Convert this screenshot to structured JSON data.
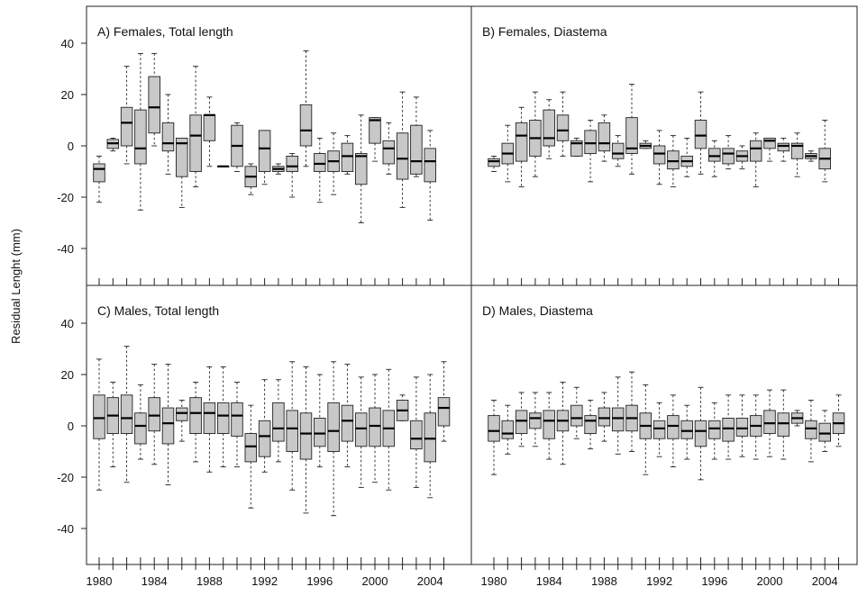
{
  "y_axis_title": "Residual Lenght (mm)",
  "chart_data": [
    {
      "type": "box",
      "title": "A) Females, Total length",
      "ylim": [
        -52,
        52
      ],
      "y_ticks": [
        40,
        20,
        0,
        -20,
        -40
      ],
      "x_ticks": [
        1980,
        1984,
        1988,
        1992,
        1996,
        2000,
        2004
      ],
      "years": [
        1980,
        1981,
        1982,
        1983,
        1984,
        1985,
        1986,
        1987,
        1988,
        1989,
        1990,
        1991,
        1992,
        1993,
        1994,
        1995,
        1996,
        1997,
        1998,
        1999,
        2000,
        2001,
        2002,
        2003,
        2004,
        2005
      ],
      "boxes": [
        {
          "year": 1980,
          "min": -22,
          "q1": -14,
          "median": -9,
          "q3": -7,
          "max": -4
        },
        {
          "year": 1981,
          "min": -2,
          "q1": -1,
          "median": 1,
          "q3": 2.5,
          "max": 3
        },
        {
          "year": 1982,
          "min": -7,
          "q1": 0,
          "median": 9,
          "q3": 15,
          "max": 31
        },
        {
          "year": 1983,
          "min": -25,
          "q1": -7,
          "median": -1,
          "q3": 14,
          "max": 36
        },
        {
          "year": 1984,
          "min": 0,
          "q1": 5,
          "median": 15,
          "q3": 27,
          "max": 36
        },
        {
          "year": 1985,
          "min": -11,
          "q1": -2,
          "median": 1,
          "q3": 9,
          "max": 20
        },
        {
          "year": 1986,
          "min": -24,
          "q1": -12,
          "median": 1,
          "q3": 3,
          "max": 3
        },
        {
          "year": 1987,
          "min": -16,
          "q1": -10,
          "median": 4,
          "q3": 12,
          "max": 31
        },
        {
          "year": 1988,
          "min": -8,
          "q1": 2,
          "median": 12,
          "q3": 12,
          "max": 19
        },
        {
          "year": 1989,
          "min": -8,
          "q1": -8,
          "median": -8,
          "q3": -8,
          "max": -8
        },
        {
          "year": 1990,
          "min": -10,
          "q1": -8,
          "median": 0,
          "q3": 8,
          "max": 9
        },
        {
          "year": 1991,
          "min": -19,
          "q1": -16,
          "median": -12,
          "q3": -8,
          "max": -7
        },
        {
          "year": 1992,
          "min": -15,
          "q1": -10,
          "median": -1,
          "q3": 6,
          "max": 6
        },
        {
          "year": 1993,
          "min": -11,
          "q1": -10,
          "median": -9,
          "q3": -8,
          "max": -7
        },
        {
          "year": 1994,
          "min": -20,
          "q1": -10,
          "median": -8,
          "q3": -4,
          "max": -3
        },
        {
          "year": 1995,
          "min": -8,
          "q1": 0,
          "median": 6,
          "q3": 16,
          "max": 37
        },
        {
          "year": 1996,
          "min": -22,
          "q1": -10,
          "median": -7,
          "q3": -3,
          "max": 3
        },
        {
          "year": 1997,
          "min": -19,
          "q1": -10,
          "median": -6,
          "q3": -2,
          "max": 5
        },
        {
          "year": 1998,
          "min": -11,
          "q1": -10,
          "median": -4,
          "q3": 1,
          "max": 4
        },
        {
          "year": 1999,
          "min": -30,
          "q1": -15,
          "median": -4,
          "q3": -3,
          "max": 12
        },
        {
          "year": 2000,
          "min": -6,
          "q1": 1,
          "median": 10,
          "q3": 11,
          "max": 11
        },
        {
          "year": 2001,
          "min": -11,
          "q1": -7,
          "median": -1,
          "q3": 2,
          "max": 9
        },
        {
          "year": 2002,
          "min": -24,
          "q1": -13,
          "median": -5,
          "q3": 5,
          "max": 21
        },
        {
          "year": 2003,
          "min": -12,
          "q1": -11,
          "median": -6,
          "q3": 8,
          "max": 19
        },
        {
          "year": 2004,
          "min": -29,
          "q1": -14,
          "median": -6,
          "q3": -1,
          "max": 6
        }
      ]
    },
    {
      "type": "box",
      "title": "B) Females, Diastema",
      "ylim": [
        -52,
        52
      ],
      "y_ticks": [
        40,
        20,
        0,
        -20,
        -40
      ],
      "x_ticks": [
        1980,
        1984,
        1988,
        1992,
        1996,
        2000,
        2004
      ],
      "years": [
        1980,
        1981,
        1982,
        1983,
        1984,
        1985,
        1986,
        1987,
        1988,
        1989,
        1990,
        1991,
        1992,
        1993,
        1994,
        1995,
        1996,
        1997,
        1998,
        1999,
        2000,
        2001,
        2002,
        2003,
        2004,
        2005
      ],
      "boxes": [
        {
          "year": 1980,
          "min": -10,
          "q1": -8,
          "median": -6,
          "q3": -5,
          "max": -4
        },
        {
          "year": 1981,
          "min": -14,
          "q1": -7,
          "median": -3,
          "q3": 1,
          "max": 8
        },
        {
          "year": 1982,
          "min": -16,
          "q1": -6,
          "median": 4,
          "q3": 9,
          "max": 15
        },
        {
          "year": 1983,
          "min": -12,
          "q1": -4,
          "median": 3,
          "q3": 10,
          "max": 21
        },
        {
          "year": 1984,
          "min": -5,
          "q1": 0,
          "median": 3,
          "q3": 14,
          "max": 18
        },
        {
          "year": 1985,
          "min": -4,
          "q1": 2,
          "median": 6,
          "q3": 12,
          "max": 21
        },
        {
          "year": 1986,
          "min": -4,
          "q1": -4,
          "median": 1,
          "q3": 2,
          "max": 3
        },
        {
          "year": 1987,
          "min": -14,
          "q1": -3,
          "median": 1,
          "q3": 6,
          "max": 10
        },
        {
          "year": 1988,
          "min": -6,
          "q1": -2,
          "median": 1,
          "q3": 9,
          "max": 12
        },
        {
          "year": 1989,
          "min": -8,
          "q1": -5,
          "median": -3,
          "q3": 1,
          "max": 4
        },
        {
          "year": 1990,
          "min": -11,
          "q1": -3,
          "median": -1,
          "q3": 11,
          "max": 24
        },
        {
          "year": 1991,
          "min": -1,
          "q1": -1,
          "median": 0,
          "q3": 1,
          "max": 2
        },
        {
          "year": 1992,
          "min": -15,
          "q1": -7,
          "median": -3,
          "q3": 0,
          "max": 6
        },
        {
          "year": 1993,
          "min": -16,
          "q1": -9,
          "median": -6,
          "q3": -2,
          "max": 4
        },
        {
          "year": 1994,
          "min": -12,
          "q1": -8,
          "median": -6,
          "q3": -4,
          "max": 3
        },
        {
          "year": 1995,
          "min": -11,
          "q1": -1,
          "median": 4,
          "q3": 10,
          "max": 21
        },
        {
          "year": 1996,
          "min": -12,
          "q1": -6,
          "median": -4,
          "q3": -1,
          "max": 2
        },
        {
          "year": 1997,
          "min": -9,
          "q1": -7,
          "median": -3,
          "q3": -1,
          "max": 4
        },
        {
          "year": 1998,
          "min": -9,
          "q1": -6,
          "median": -4,
          "q3": -2,
          "max": 0
        },
        {
          "year": 1999,
          "min": -16,
          "q1": -6,
          "median": -1,
          "q3": 2,
          "max": 5
        },
        {
          "year": 2000,
          "min": -6,
          "q1": -1,
          "median": 2,
          "q3": 3,
          "max": 3
        },
        {
          "year": 2001,
          "min": -6,
          "q1": -2,
          "median": 0,
          "q3": 1,
          "max": 3
        },
        {
          "year": 2002,
          "min": -12,
          "q1": -5,
          "median": 0,
          "q3": 1,
          "max": 5
        },
        {
          "year": 2003,
          "min": -6,
          "q1": -5,
          "median": -4,
          "q3": -3,
          "max": -2
        },
        {
          "year": 2004,
          "min": -14,
          "q1": -9,
          "median": -5,
          "q3": -1,
          "max": 10
        }
      ]
    },
    {
      "type": "box",
      "title": "C) Males, Total length",
      "ylim": [
        -52,
        52
      ],
      "y_ticks": [
        40,
        20,
        0,
        -20,
        -40
      ],
      "x_ticks": [
        1980,
        1984,
        1988,
        1992,
        1996,
        2000,
        2004
      ],
      "years": [
        1980,
        1981,
        1982,
        1983,
        1984,
        1985,
        1986,
        1987,
        1988,
        1989,
        1990,
        1991,
        1992,
        1993,
        1994,
        1995,
        1996,
        1997,
        1998,
        1999,
        2000,
        2001,
        2002,
        2003,
        2004,
        2005
      ],
      "boxes": [
        {
          "year": 1980,
          "min": -25,
          "q1": -5,
          "median": 3,
          "q3": 12,
          "max": 26
        },
        {
          "year": 1981,
          "min": -16,
          "q1": -3,
          "median": 4,
          "q3": 11,
          "max": 17
        },
        {
          "year": 1982,
          "min": -22,
          "q1": -3,
          "median": 3,
          "q3": 12,
          "max": 31
        },
        {
          "year": 1983,
          "min": -13,
          "q1": -7,
          "median": 0,
          "q3": 5,
          "max": 16
        },
        {
          "year": 1984,
          "min": -15,
          "q1": -2,
          "median": 4,
          "q3": 11,
          "max": 24
        },
        {
          "year": 1985,
          "min": -23,
          "q1": -7,
          "median": 1,
          "q3": 7,
          "max": 24
        },
        {
          "year": 1986,
          "min": -6,
          "q1": 2,
          "median": 5,
          "q3": 7,
          "max": 10
        },
        {
          "year": 1987,
          "min": -14,
          "q1": -3,
          "median": 5,
          "q3": 11,
          "max": 17
        },
        {
          "year": 1988,
          "min": -18,
          "q1": -3,
          "median": 5,
          "q3": 9,
          "max": 23
        },
        {
          "year": 1989,
          "min": -16,
          "q1": -3,
          "median": 4,
          "q3": 9,
          "max": 23
        },
        {
          "year": 1990,
          "min": -16,
          "q1": -4,
          "median": 4,
          "q3": 9,
          "max": 17
        },
        {
          "year": 1991,
          "min": -32,
          "q1": -14,
          "median": -8,
          "q3": -3,
          "max": 8
        },
        {
          "year": 1992,
          "min": -18,
          "q1": -12,
          "median": -4,
          "q3": 2,
          "max": 18
        },
        {
          "year": 1993,
          "min": -14,
          "q1": -6,
          "median": -1,
          "q3": 9,
          "max": 18
        },
        {
          "year": 1994,
          "min": -25,
          "q1": -10,
          "median": -1,
          "q3": 6,
          "max": 25
        },
        {
          "year": 1995,
          "min": -34,
          "q1": -13,
          "median": -3,
          "q3": 5,
          "max": 23
        },
        {
          "year": 1996,
          "min": -16,
          "q1": -8,
          "median": -3,
          "q3": 3,
          "max": 20
        },
        {
          "year": 1997,
          "min": -35,
          "q1": -10,
          "median": -2,
          "q3": 9,
          "max": 25
        },
        {
          "year": 1998,
          "min": -16,
          "q1": -6,
          "median": 2,
          "q3": 8,
          "max": 24
        },
        {
          "year": 1999,
          "min": -24,
          "q1": -8,
          "median": -1,
          "q3": 5,
          "max": 19
        },
        {
          "year": 2000,
          "min": -22,
          "q1": -8,
          "median": 0,
          "q3": 7,
          "max": 20
        },
        {
          "year": 2001,
          "min": -25,
          "q1": -8,
          "median": -1,
          "q3": 6,
          "max": 22
        },
        {
          "year": 2002,
          "min": 2,
          "q1": 2,
          "median": 6,
          "q3": 10,
          "max": 12
        },
        {
          "year": 2003,
          "min": -24,
          "q1": -9,
          "median": -5,
          "q3": 2,
          "max": 19
        },
        {
          "year": 2004,
          "min": -28,
          "q1": -14,
          "median": -5,
          "q3": 5,
          "max": 20
        },
        {
          "year": 2005,
          "min": -6,
          "q1": 0,
          "median": 7,
          "q3": 11,
          "max": 25
        }
      ]
    },
    {
      "type": "box",
      "title": "D) Males, Diastema",
      "ylim": [
        -52,
        52
      ],
      "y_ticks": [
        40,
        20,
        0,
        -20,
        -40
      ],
      "x_ticks": [
        1980,
        1984,
        1988,
        1992,
        1996,
        2000,
        2004
      ],
      "years": [
        1980,
        1981,
        1982,
        1983,
        1984,
        1985,
        1986,
        1987,
        1988,
        1989,
        1990,
        1991,
        1992,
        1993,
        1994,
        1995,
        1996,
        1997,
        1998,
        1999,
        2000,
        2001,
        2002,
        2003,
        2004,
        2005
      ],
      "boxes": [
        {
          "year": 1980,
          "min": -19,
          "q1": -6,
          "median": -2,
          "q3": 4,
          "max": 10
        },
        {
          "year": 1981,
          "min": -11,
          "q1": -5,
          "median": -3,
          "q3": 2,
          "max": 8
        },
        {
          "year": 1982,
          "min": -8,
          "q1": -3,
          "median": 2,
          "q3": 6,
          "max": 13
        },
        {
          "year": 1983,
          "min": -8,
          "q1": -1,
          "median": 3,
          "q3": 5,
          "max": 13
        },
        {
          "year": 1984,
          "min": -13,
          "q1": -5,
          "median": 2,
          "q3": 6,
          "max": 13
        },
        {
          "year": 1985,
          "min": -15,
          "q1": -2,
          "median": 2,
          "q3": 6,
          "max": 17
        },
        {
          "year": 1986,
          "min": -5,
          "q1": 0,
          "median": 3,
          "q3": 8,
          "max": 15
        },
        {
          "year": 1987,
          "min": -9,
          "q1": -3,
          "median": 2,
          "q3": 4,
          "max": 10
        },
        {
          "year": 1988,
          "min": -6,
          "q1": 0,
          "median": 3,
          "q3": 7,
          "max": 13
        },
        {
          "year": 1989,
          "min": -11,
          "q1": -2,
          "median": 3,
          "q3": 7,
          "max": 19
        },
        {
          "year": 1990,
          "min": -10,
          "q1": -2,
          "median": 3,
          "q3": 8,
          "max": 21
        },
        {
          "year": 1991,
          "min": -19,
          "q1": -5,
          "median": 0,
          "q3": 5,
          "max": 16
        },
        {
          "year": 1992,
          "min": -12,
          "q1": -5,
          "median": -1,
          "q3": 2,
          "max": 9
        },
        {
          "year": 1993,
          "min": -16,
          "q1": -5,
          "median": 0,
          "q3": 4,
          "max": 12
        },
        {
          "year": 1994,
          "min": -13,
          "q1": -5,
          "median": -2,
          "q3": 2,
          "max": 8
        },
        {
          "year": 1995,
          "min": -21,
          "q1": -8,
          "median": -2,
          "q3": 2,
          "max": 15
        },
        {
          "year": 1996,
          "min": -13,
          "q1": -5,
          "median": -1,
          "q3": 2,
          "max": 9
        },
        {
          "year": 1997,
          "min": -13,
          "q1": -6,
          "median": -1,
          "q3": 3,
          "max": 12
        },
        {
          "year": 1998,
          "min": -12,
          "q1": -4,
          "median": -1,
          "q3": 3,
          "max": 12
        },
        {
          "year": 1999,
          "min": -13,
          "q1": -4,
          "median": 0,
          "q3": 4,
          "max": 12
        },
        {
          "year": 2000,
          "min": -12,
          "q1": -3,
          "median": 1,
          "q3": 6,
          "max": 14
        },
        {
          "year": 2001,
          "min": -13,
          "q1": -4,
          "median": 1,
          "q3": 5,
          "max": 14
        },
        {
          "year": 2002,
          "min": 0,
          "q1": 1,
          "median": 3,
          "q3": 5,
          "max": 6
        },
        {
          "year": 2003,
          "min": -14,
          "q1": -5,
          "median": -1,
          "q3": 2,
          "max": 10
        },
        {
          "year": 2004,
          "min": -10,
          "q1": -6,
          "median": -3,
          "q3": 1,
          "max": 6
        },
        {
          "year": 2005,
          "min": -8,
          "q1": -3,
          "median": 1,
          "q3": 5,
          "max": 12
        }
      ]
    }
  ]
}
